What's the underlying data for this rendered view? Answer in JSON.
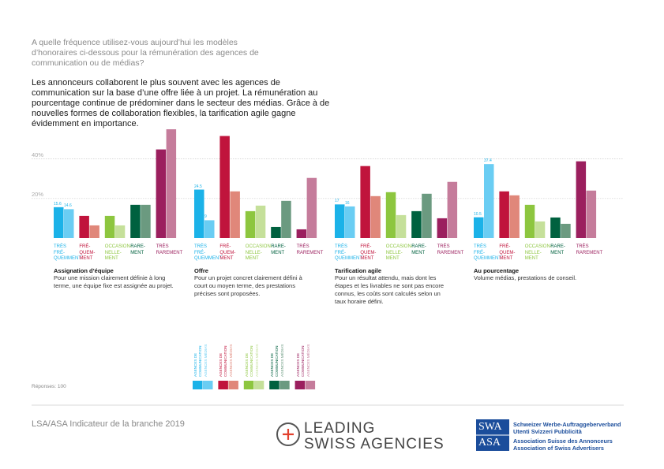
{
  "question": "A quelle fréquence utilisez-vous aujourd’hui les modèles d’honoraires ci-dessous pour la rémunération des agences de communication ou de médias?",
  "lead": "Les annonceurs collaborent le plus souvent avec les agences de communication sur la base d’une offre liée à un projet. La rémunération au pourcentage continue de prédominer dans le secteur des médias. Grâce à de nouvelles formes de collaboration flexibles, la tarification agile gagne évidemment en importance.",
  "axis": {
    "ylim": [
      0,
      55
    ],
    "yticks": [
      {
        "value": 20,
        "label": "20%"
      },
      {
        "value": 40,
        "label": "40%"
      }
    ],
    "grid": true
  },
  "chart_data": [
    {
      "type": "bar",
      "title": "Assignation d’équipe",
      "description": "Pour une mission clairement définie à long terme, une équipe fixe est assignée au projet.",
      "categories": [
        "TRÈS\nFRÉ-\nQUEMMENT",
        "FRÉ-\nQUEM-\nMENT",
        "OCCASION-\nNELLE-\nMENT",
        "RARE-\nMENT",
        "TRÈS\nRAREMENT"
      ],
      "series": [
        {
          "name": "AGENCES DE\nCOMMUNICATION",
          "colors": [
            "#1bb2e8",
            "#c0143c",
            "#8dc63f",
            "#00613f",
            "#9b1f5e"
          ],
          "values": [
            15.6,
            11.2,
            11.2,
            16.8,
            44.8
          ],
          "value_labels": [
            "15.6",
            null,
            null,
            null,
            null
          ]
        },
        {
          "name": "AGENCES MÉDIAS",
          "colors": [
            "#6acdf3",
            "#e0877a",
            "#c5e09a",
            "#6b9a80",
            "#c57c9b"
          ],
          "values": [
            14.6,
            6.4,
            6.4,
            16.8,
            55
          ],
          "value_labels": [
            "14.6",
            null,
            null,
            null,
            null
          ]
        }
      ]
    },
    {
      "type": "bar",
      "title": "Offre",
      "description": "Pour un projet concret clairement défini à court ou moyen terme, des prestations précises sont proposées.",
      "categories": [
        "TRÈS\nFRÉ-\nQUEMMENT",
        "FRÉ-\nQUEM-\nMENT",
        "OCCASION-\nNELLE-\nMENT",
        "RARE-\nMENT",
        "TRÈS\nRAREMENT"
      ],
      "series": [
        {
          "name": "AGENCES DE\nCOMMUNICATION",
          "colors": [
            "#1bb2e8",
            "#c0143c",
            "#8dc63f",
            "#00613f",
            "#9b1f5e"
          ],
          "values": [
            24.5,
            51.6,
            13.6,
            5.6,
            4.4
          ],
          "value_labels": [
            "24.5",
            null,
            null,
            null,
            null
          ]
        },
        {
          "name": "AGENCES MÉDIAS",
          "colors": [
            "#6acdf3",
            "#e0877a",
            "#c5e09a",
            "#6b9a80",
            "#c57c9b"
          ],
          "values": [
            9,
            23.6,
            16.4,
            18.8,
            30.4
          ],
          "value_labels": [
            "9",
            null,
            null,
            null,
            null
          ]
        }
      ]
    },
    {
      "type": "bar",
      "title": "Tarification agile",
      "description": "Pour un résultat attendu, mais dont les étapes et les livrables ne sont pas encore connus, les coûts sont calculés selon un taux horaire défini.",
      "categories": [
        "TRÈS\nFRÉ-\nQUEMMENT",
        "FRÉ-\nQUEM-\nMENT",
        "OCCASION-\nNELLE-\nMENT",
        "RARE-\nMENT",
        "TRÈS\nRAREMENT"
      ],
      "series": [
        {
          "name": "AGENCES DE\nCOMMUNICATION",
          "colors": [
            "#1bb2e8",
            "#c0143c",
            "#8dc63f",
            "#00613f",
            "#9b1f5e"
          ],
          "values": [
            17,
            36.4,
            23.2,
            13.6,
            10
          ],
          "value_labels": [
            "17",
            null,
            null,
            null,
            null
          ]
        },
        {
          "name": "AGENCES MÉDIAS",
          "colors": [
            "#6acdf3",
            "#e0877a",
            "#c5e09a",
            "#6b9a80",
            "#c57c9b"
          ],
          "values": [
            16,
            21.2,
            11.6,
            22.4,
            28.4
          ],
          "value_labels": [
            "16",
            null,
            null,
            null,
            null
          ]
        }
      ]
    },
    {
      "type": "bar",
      "title": "Au pourcentage",
      "description": "Volume médias, prestations de conseil.",
      "categories": [
        "TRÈS\nFRÉ-\nQUEMMENT",
        "FRÉ-\nQUEM-\nMENT",
        "OCCASION-\nNELLE-\nMENT",
        "RARE-\nMENT",
        "TRÈS\nRAREMENT"
      ],
      "series": [
        {
          "name": "AGENCES DE\nCOMMUNICATION",
          "colors": [
            "#1bb2e8",
            "#c0143c",
            "#8dc63f",
            "#00613f",
            "#9b1f5e"
          ],
          "values": [
            10.5,
            23.6,
            16.8,
            10.4,
            38.8
          ],
          "value_labels": [
            "10.5",
            null,
            null,
            null,
            null
          ]
        },
        {
          "name": "AGENCES MÉDIAS",
          "colors": [
            "#6acdf3",
            "#e0877a",
            "#c5e09a",
            "#6b9a80",
            "#c57c9b"
          ],
          "values": [
            37.4,
            21.6,
            8.4,
            7.2,
            24
          ],
          "value_labels": [
            "37.4",
            null,
            null,
            null,
            null
          ]
        }
      ]
    }
  ],
  "responses": "Réponses: 100",
  "footer": {
    "report": "LSA/ASA Indicateur de la branche 2019",
    "logo_line1": "LEADING",
    "logo_line2": "SWISS AGENCIES",
    "swa_mark_top": "SWA",
    "swa_mark_bottom": "ASA",
    "swa_lines": [
      "Schweizer Werbe-Auftraggeberverband",
      "Utenti Svizzeri Pubblicità",
      "Association Suisse des Annonceurs",
      "Association of Swiss Advertisers"
    ]
  }
}
